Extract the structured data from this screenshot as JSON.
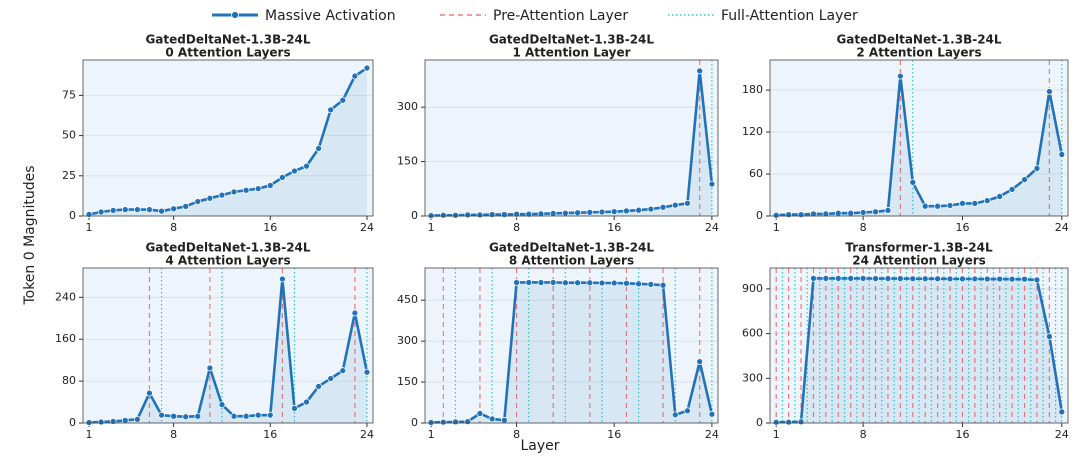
{
  "figure": {
    "xlabel": "Layer",
    "ylabel": "Token 0 Magnitudes"
  },
  "chart_data": [
    {
      "type": "line",
      "title": "GatedDeltaNet-1.3B-24L",
      "subtitle": "0 Attention Layers",
      "x": [
        1,
        2,
        3,
        4,
        5,
        6,
        7,
        8,
        9,
        10,
        11,
        12,
        13,
        14,
        15,
        16,
        17,
        18,
        19,
        20,
        21,
        22,
        23,
        24
      ],
      "series": [
        {
          "name": "Massive Activation",
          "color": "#2272b9",
          "values": [
            1,
            2.5,
            3.5,
            4,
            4,
            4,
            3,
            4.5,
            6,
            9,
            11,
            13,
            15,
            16,
            17,
            19,
            24,
            28,
            31,
            42,
            66,
            72,
            87,
            92
          ]
        }
      ],
      "vlines": [
        {
          "name": "Pre-Attention Layer",
          "color": "#ef7b7b",
          "x": []
        },
        {
          "name": "Full-Attention Layer",
          "color": "#3cc4c4",
          "x": []
        }
      ],
      "xlim": [
        0.5,
        24.5
      ],
      "xticks": [
        1,
        8,
        16,
        24
      ],
      "ylim": [
        0,
        97
      ],
      "yticks": [
        0,
        25,
        50,
        75
      ],
      "grid": true
    },
    {
      "type": "line",
      "title": "GatedDeltaNet-1.3B-24L",
      "subtitle": "1 Attention Layer",
      "x": [
        1,
        2,
        3,
        4,
        5,
        6,
        7,
        8,
        9,
        10,
        11,
        12,
        13,
        14,
        15,
        16,
        17,
        18,
        19,
        20,
        21,
        22,
        23,
        24
      ],
      "series": [
        {
          "name": "Massive Activation",
          "color": "#2272b9",
          "values": [
            1,
            2,
            2,
            3,
            3,
            4,
            4,
            5,
            5,
            6,
            7,
            8,
            9,
            10,
            11,
            12,
            14,
            16,
            19,
            24,
            30,
            35,
            400,
            88
          ]
        }
      ],
      "vlines": [
        {
          "name": "Pre-Attention Layer",
          "color": "#ef7b7b",
          "x": [
            23
          ]
        },
        {
          "name": "Full-Attention Layer",
          "color": "#3cc4c4",
          "x": [
            24
          ]
        }
      ],
      "xlim": [
        0.5,
        24.5
      ],
      "xticks": [
        1,
        8,
        16,
        24
      ],
      "ylim": [
        0,
        430
      ],
      "yticks": [
        0,
        150,
        300
      ],
      "grid": true
    },
    {
      "type": "line",
      "title": "GatedDeltaNet-1.3B-24L",
      "subtitle": "2 Attention Layers",
      "x": [
        1,
        2,
        3,
        4,
        5,
        6,
        7,
        8,
        9,
        10,
        11,
        12,
        13,
        14,
        15,
        16,
        17,
        18,
        19,
        20,
        21,
        22,
        23,
        24
      ],
      "series": [
        {
          "name": "Massive Activation",
          "color": "#2272b9",
          "values": [
            1,
            2,
            2,
            3,
            3,
            4,
            4,
            5,
            6,
            8,
            200,
            48,
            14,
            14,
            15,
            18,
            18,
            22,
            28,
            38,
            52,
            68,
            178,
            88
          ]
        }
      ],
      "vlines": [
        {
          "name": "Pre-Attention Layer",
          "color": "#ef7b7b",
          "x": [
            11,
            23
          ]
        },
        {
          "name": "Full-Attention Layer",
          "color": "#3cc4c4",
          "x": [
            12,
            24
          ]
        }
      ],
      "xlim": [
        0.5,
        24.5
      ],
      "xticks": [
        1,
        8,
        16,
        24
      ],
      "ylim": [
        0,
        223
      ],
      "yticks": [
        0,
        60,
        120,
        180
      ],
      "grid": true
    },
    {
      "type": "line",
      "title": "GatedDeltaNet-1.3B-24L",
      "subtitle": "4 Attention Layers",
      "x": [
        1,
        2,
        3,
        4,
        5,
        6,
        7,
        8,
        9,
        10,
        11,
        12,
        13,
        14,
        15,
        16,
        17,
        18,
        19,
        20,
        21,
        22,
        23,
        24
      ],
      "series": [
        {
          "name": "Massive Activation",
          "color": "#2272b9",
          "values": [
            1,
            2,
            3,
            5,
            7,
            57,
            15,
            13,
            12,
            13,
            105,
            35,
            13,
            13,
            15,
            15,
            275,
            28,
            40,
            70,
            85,
            100,
            210,
            97
          ]
        }
      ],
      "vlines": [
        {
          "name": "Pre-Attention Layer",
          "color": "#ef7b7b",
          "x": [
            6,
            11,
            17,
            23
          ]
        },
        {
          "name": "Full-Attention Layer",
          "color": "#3cc4c4",
          "x": [
            7,
            12,
            18,
            24
          ]
        }
      ],
      "xlim": [
        0.5,
        24.5
      ],
      "xticks": [
        1,
        8,
        16,
        24
      ],
      "ylim": [
        0,
        296
      ],
      "yticks": [
        0,
        80,
        160,
        240
      ],
      "grid": true
    },
    {
      "type": "line",
      "title": "GatedDeltaNet-1.3B-24L",
      "subtitle": "8 Attention Layers",
      "x": [
        1,
        2,
        3,
        4,
        5,
        6,
        7,
        8,
        9,
        10,
        11,
        12,
        13,
        14,
        15,
        16,
        17,
        18,
        19,
        20,
        21,
        22,
        23,
        24
      ],
      "series": [
        {
          "name": "Massive Activation",
          "color": "#2272b9",
          "values": [
            2,
            3,
            4,
            5,
            35,
            15,
            10,
            515,
            515,
            515,
            515,
            514,
            514,
            514,
            513,
            513,
            512,
            510,
            508,
            505,
            30,
            45,
            225,
            32
          ]
        }
      ],
      "vlines": [
        {
          "name": "Pre-Attention Layer",
          "color": "#ef7b7b",
          "x": [
            2,
            5,
            8,
            11,
            14,
            17,
            20,
            23
          ]
        },
        {
          "name": "Full-Attention Layer",
          "color": "#3cc4c4",
          "x": [
            3,
            6,
            9,
            12,
            15,
            18,
            21,
            24
          ]
        }
      ],
      "xlim": [
        0.5,
        24.5
      ],
      "xticks": [
        1,
        8,
        16,
        24
      ],
      "ylim": [
        0,
        568
      ],
      "yticks": [
        0,
        150,
        300,
        450
      ],
      "grid": true
    },
    {
      "type": "line",
      "title": "Transformer-1.3B-24L",
      "subtitle": "24 Attention Layers",
      "x": [
        1,
        2,
        3,
        4,
        5,
        6,
        7,
        8,
        9,
        10,
        11,
        12,
        13,
        14,
        15,
        16,
        17,
        18,
        19,
        20,
        21,
        22,
        23,
        24
      ],
      "series": [
        {
          "name": "Massive Activation",
          "color": "#2272b9",
          "values": [
            5,
            6,
            8,
            970,
            970,
            970,
            970,
            970,
            969,
            969,
            969,
            968,
            968,
            968,
            967,
            967,
            967,
            966,
            966,
            965,
            965,
            960,
            580,
            75
          ]
        }
      ],
      "vlines": [
        {
          "name": "Pre-Attention Layer",
          "color": "#ef7b7b",
          "x": [
            1,
            2,
            3,
            4,
            5,
            6,
            7,
            8,
            9,
            10,
            11,
            12,
            13,
            14,
            15,
            16,
            17,
            18,
            19,
            20,
            21,
            22,
            23
          ]
        },
        {
          "name": "Full-Attention Layer",
          "color": "#3cc4c4",
          "x": [
            1.5,
            2.5,
            3.5,
            4.5,
            5.5,
            6.5,
            7.5,
            8.5,
            9.5,
            10.5,
            11.5,
            12.5,
            13.5,
            14.5,
            15.5,
            16.5,
            17.5,
            18.5,
            19.5,
            20.5,
            21.5,
            22.5,
            23.5,
            24
          ]
        }
      ],
      "xlim": [
        0.5,
        24.5
      ],
      "xticks": [
        1,
        8,
        16,
        24
      ],
      "ylim": [
        0,
        1040
      ],
      "yticks": [
        0,
        300,
        600,
        900
      ],
      "grid": true
    }
  ]
}
